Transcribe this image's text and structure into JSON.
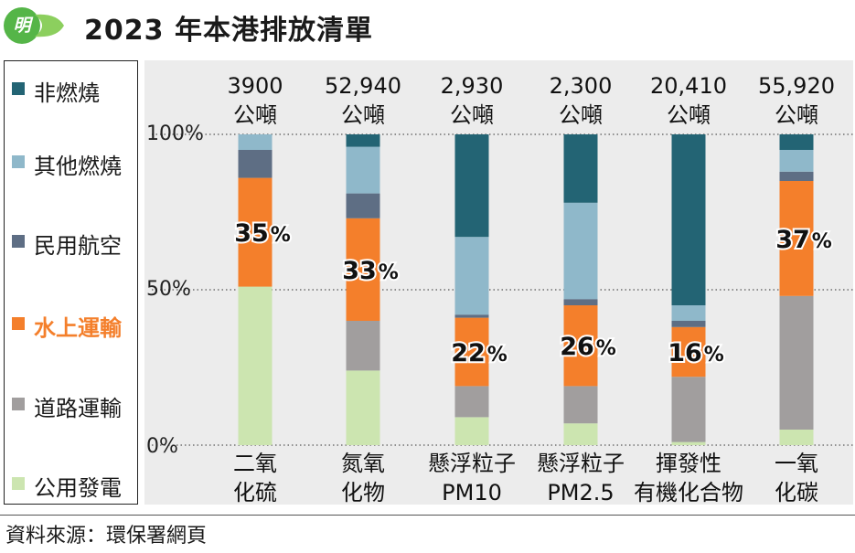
{
  "header": {
    "logo_text": "明",
    "title": "2023 年本港排放清單"
  },
  "source": "資料來源：環保署網頁",
  "chart_data": {
    "type": "bar",
    "stacked": true,
    "normalized_percent": true,
    "title": "2023 年本港排放清單",
    "y_ticks": [
      "100%",
      "50%",
      "0%"
    ],
    "ylim": [
      0,
      100
    ],
    "grid": "dotted horizontal lines at 0%, 50%, 100%",
    "legend_position": "left",
    "categories": [
      [
        "二氧",
        "化硫"
      ],
      [
        "氮氧",
        "化物"
      ],
      [
        "懸浮粒子",
        "PM10"
      ],
      [
        "懸浮粒子",
        "PM2.5"
      ],
      [
        "揮發性",
        "有機化合物"
      ],
      [
        "一氧",
        "化碳"
      ]
    ],
    "totals": [
      [
        "3900",
        "公噸"
      ],
      [
        "52,940",
        "公噸"
      ],
      [
        "2,930",
        "公噸"
      ],
      [
        "2,300",
        "公噸"
      ],
      [
        "20,410",
        "公噸"
      ],
      [
        "55,920",
        "公噸"
      ]
    ],
    "highlight_labels": [
      "35",
      "33",
      "22",
      "26",
      "16",
      "37"
    ],
    "highlight_unit": "%",
    "series": [
      {
        "name": "公用發電",
        "color": "#cce5b0",
        "values": [
          51,
          24,
          9,
          7,
          1,
          5
        ]
      },
      {
        "name": "道路運輸",
        "color": "#a19e9e",
        "values": [
          0,
          16,
          10,
          12,
          21,
          43
        ]
      },
      {
        "name": "水上運輸",
        "color": "#f47f2b",
        "values": [
          35,
          33,
          22,
          26,
          16,
          37
        ]
      },
      {
        "name": "民用航空",
        "color": "#5e6e84",
        "values": [
          9,
          8,
          1,
          2,
          2,
          3
        ]
      },
      {
        "name": "其他燃燒",
        "color": "#8fb8ca",
        "values": [
          5,
          15,
          25,
          31,
          5,
          7
        ]
      },
      {
        "name": "非燃燒",
        "color": "#236474",
        "values": [
          0,
          4,
          33,
          22,
          55,
          5
        ]
      }
    ]
  },
  "legend": {
    "items": [
      {
        "label": "非燃燒",
        "color": "#236474",
        "text_color": "#1a1a1a"
      },
      {
        "label": "其他燃燒",
        "color": "#8fb8ca",
        "text_color": "#1a1a1a"
      },
      {
        "label": "民用航空",
        "color": "#5e6e84",
        "text_color": "#1a1a1a"
      },
      {
        "label": "水上運輸",
        "color": "#f47f2b",
        "text_color": "#f47f2b"
      },
      {
        "label": "道路運輸",
        "color": "#a19e9e",
        "text_color": "#1a1a1a"
      },
      {
        "label": "公用發電",
        "color": "#cce5b0",
        "text_color": "#1a1a1a"
      }
    ]
  }
}
